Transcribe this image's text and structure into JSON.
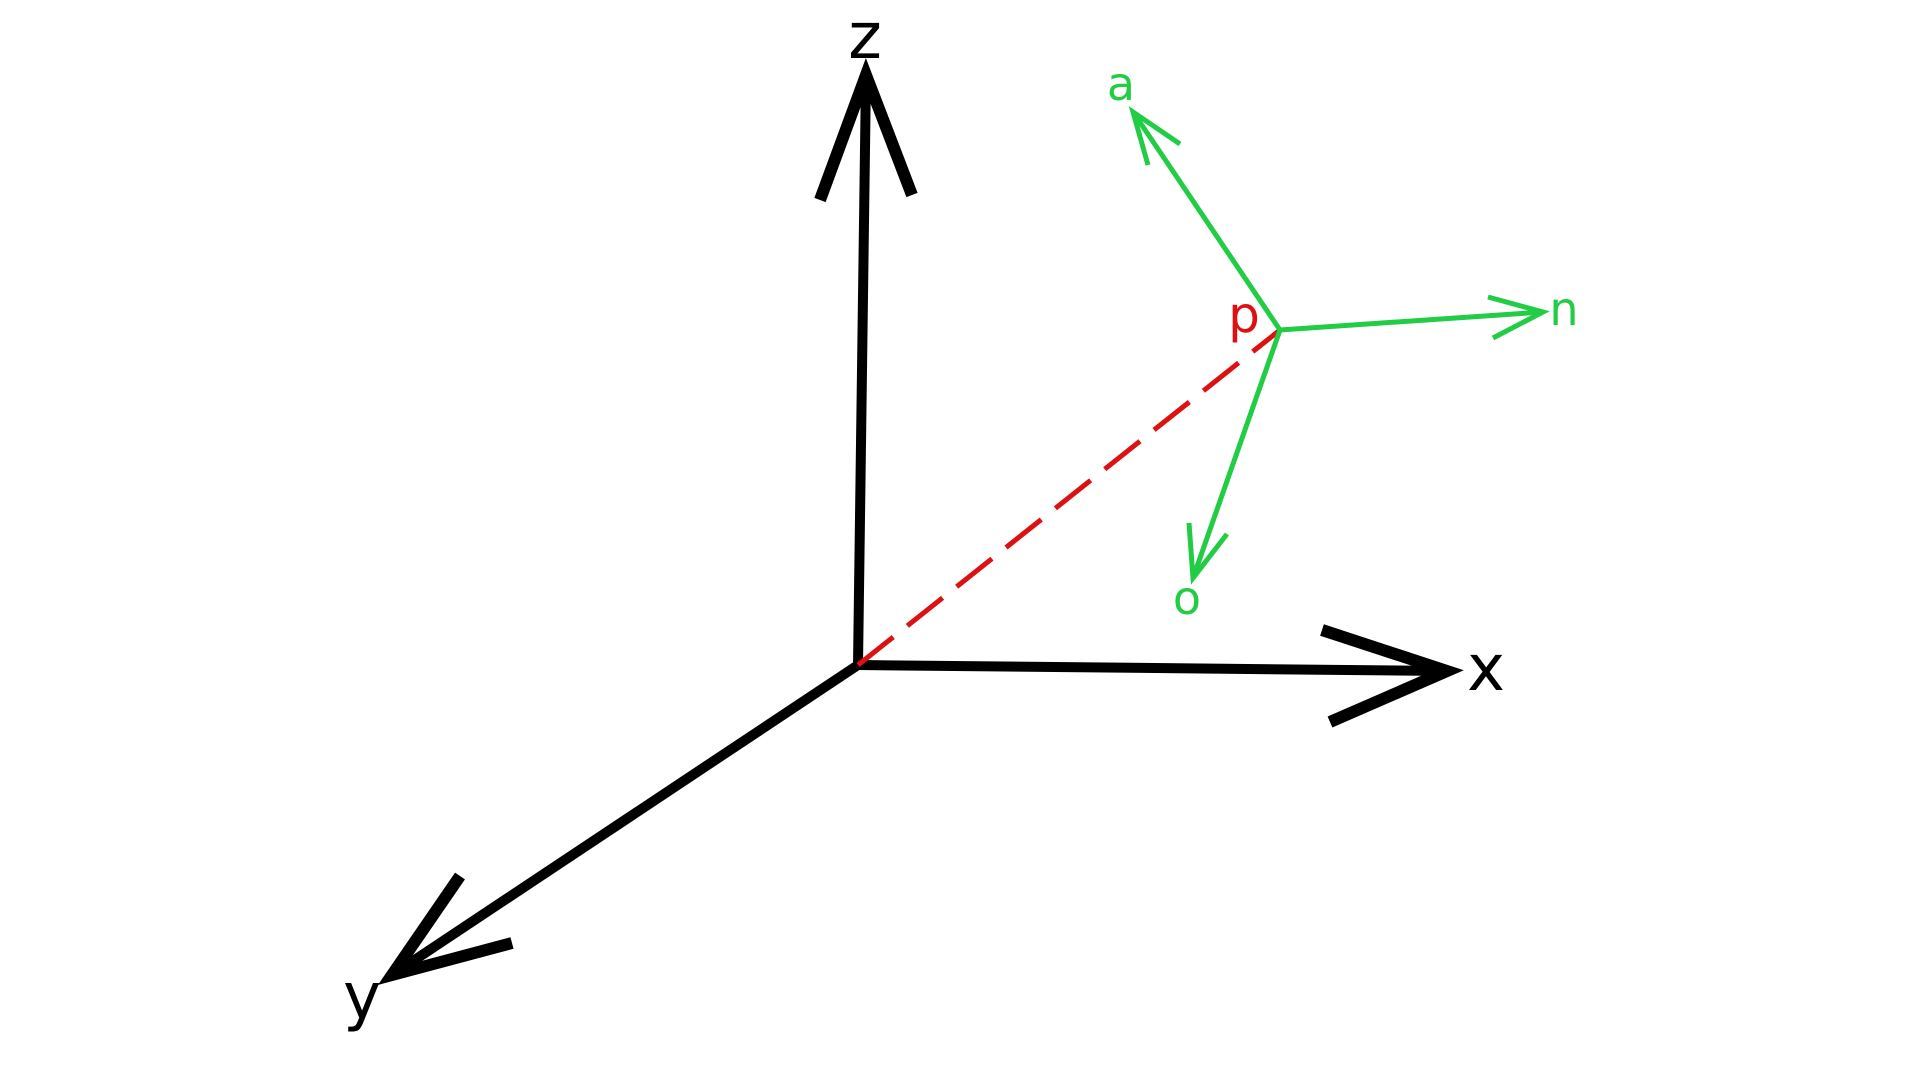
{
  "world_axes": {
    "x_label": "x",
    "y_label": "y",
    "z_label": "z"
  },
  "tool_frame": {
    "n_label": "n",
    "o_label": "o",
    "a_label": "a"
  },
  "position_vector": {
    "label": "p"
  },
  "colors": {
    "world_axes": "#000000",
    "tool_frame": "#22cc44",
    "position_vector": "#dd1111"
  }
}
